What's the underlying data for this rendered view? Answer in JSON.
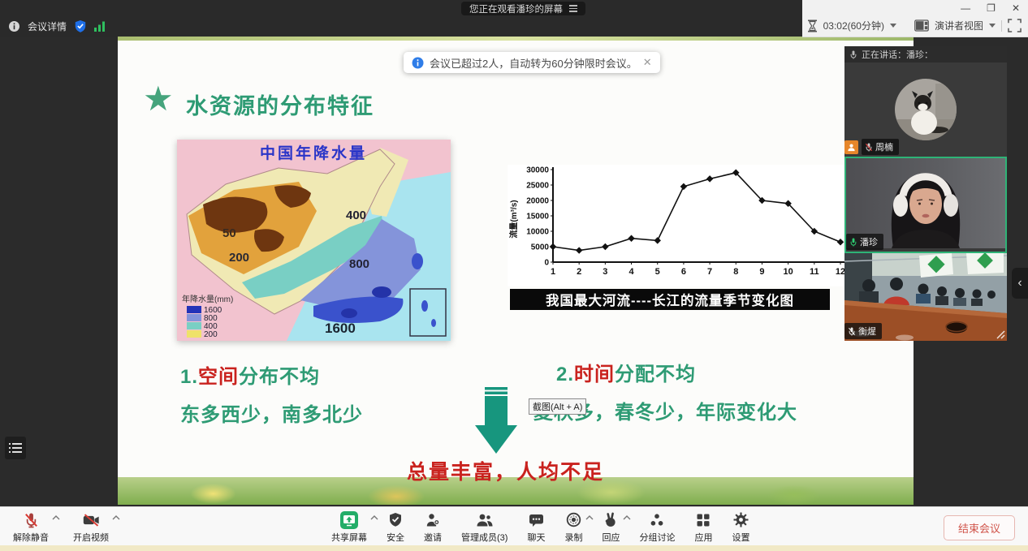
{
  "colors": {
    "accent_green": "#2e9b74",
    "accent_red": "#c9221e",
    "brand_blue": "#1e6fe8",
    "active_speaker_green": "#2eb377",
    "share_green": "#23ad68",
    "end_meeting_red": "#d0544a"
  },
  "window": {
    "watching_banner": "您正在观看潘珍的屏幕",
    "minimize": "—",
    "maximize": "❐",
    "close": "✕"
  },
  "topbar": {
    "meeting_details": "会议详情",
    "timer": "03:02(60分钟)",
    "view_mode": "演讲者视图"
  },
  "notice": {
    "text": "会议已超过2人，自动转为60分钟限时会议。",
    "close": "✕"
  },
  "icons": {
    "star": "★",
    "collapse": "‹",
    "info_i": "i"
  },
  "slide": {
    "title": "水资源的分布特征",
    "point1_num": "1.",
    "point1_highlight": "空间",
    "point1_rest": "分布不均",
    "point1_line2": "东多西少，南多北少",
    "point2_num": "2.",
    "point2_highlight": "时间",
    "point2_rest": "分配不均",
    "point2_line2": "夏秋多，春冬少，年际变化大",
    "conclusion": "总量丰富，人均不足",
    "screenshot_tooltip": "截图(Alt + A)",
    "map": {
      "title": "中国年降水量",
      "legend_title": "年降水量(mm)",
      "iso_labels": [
        "50",
        "200",
        "400",
        "800",
        "1600"
      ],
      "legend": [
        {
          "value": "1600",
          "color": "#2433b8"
        },
        {
          "value": "800",
          "color": "#8494da"
        },
        {
          "value": "400",
          "color": "#79cfc4"
        },
        {
          "value": "200",
          "color": "#efe26a"
        }
      ]
    }
  },
  "chart_data": {
    "type": "line",
    "title": "我国最大河流----长江的流量季节变化图",
    "x": [
      1,
      2,
      3,
      4,
      5,
      6,
      7,
      8,
      9,
      10,
      11,
      12
    ],
    "values": [
      5000,
      3800,
      5000,
      7700,
      7000,
      24500,
      27000,
      29000,
      20000,
      19000,
      10000,
      6500
    ],
    "xlabel": "",
    "ylabel": "流量(m³/s)",
    "ylim": [
      0,
      30000
    ],
    "yticks": [
      0,
      5000,
      10000,
      15000,
      20000,
      25000,
      30000
    ],
    "grid": false,
    "marker": "diamond",
    "line_color": "#111111",
    "legend_position": "none"
  },
  "sidebar": {
    "speaking": "正在讲话：潘珍：",
    "participants": [
      {
        "name": "周楠",
        "muted": true
      },
      {
        "name": "潘珍",
        "muted": false,
        "active": true
      },
      {
        "name": "衡煋",
        "muted": true
      }
    ]
  },
  "toolbar": {
    "unmute": "解除静音",
    "start_video": "开启视频",
    "share_screen": "共享屏幕",
    "security": "安全",
    "invite": "邀请",
    "members": "管理成员(3)",
    "chat": "聊天",
    "record": "录制",
    "react": "回应",
    "breakout": "分组讨论",
    "apps": "应用",
    "settings": "设置",
    "end_meeting": "结束会议"
  }
}
